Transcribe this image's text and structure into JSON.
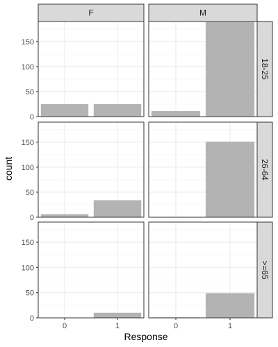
{
  "chart_data": {
    "type": "bar",
    "facet_columns": [
      "F",
      "M"
    ],
    "facet_rows": [
      "18-25",
      "26-64",
      ">=65"
    ],
    "categories": [
      "0",
      "1"
    ],
    "xlabel": "Response",
    "ylabel": "count",
    "ylim": [
      0,
      190
    ],
    "yticks": [
      0,
      50,
      100,
      150
    ],
    "grid": true,
    "bar_color": "#b3b3b3",
    "panels": [
      {
        "row": "18-25",
        "col": "F",
        "values": [
          25,
          25
        ]
      },
      {
        "row": "18-25",
        "col": "M",
        "values": [
          11,
          189
        ]
      },
      {
        "row": "26-64",
        "col": "F",
        "values": [
          6,
          34
        ]
      },
      {
        "row": "26-64",
        "col": "M",
        "values": [
          0,
          151
        ]
      },
      {
        "row": ">=65",
        "col": "F",
        "values": [
          0,
          10
        ]
      },
      {
        "row": ">=65",
        "col": "M",
        "values": [
          1,
          49
        ]
      }
    ]
  }
}
